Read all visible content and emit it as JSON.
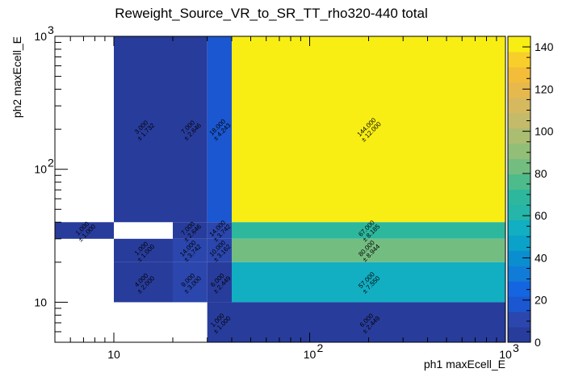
{
  "chart_data": {
    "type": "heatmap",
    "title": "Reweight_Source_VR_to_SR_TT_rho320-440 total",
    "xlabel": "ph1 maxEcell_E",
    "ylabel": "ph2 maxEcell_E",
    "x_scale": "log",
    "y_scale": "log",
    "xlim": [
      5,
      1000
    ],
    "ylim": [
      5,
      1000
    ],
    "x_tick_labels": [
      "10",
      "10",
      "10"
    ],
    "x_tick_exponents": [
      "",
      "2",
      "3"
    ],
    "y_tick_labels": [
      "10",
      "10",
      "10"
    ],
    "y_tick_exponents": [
      "",
      "2",
      "3"
    ],
    "z_range": [
      0,
      145
    ],
    "colorbar_ticks": [
      "0",
      "20",
      "40",
      "60",
      "80",
      "100",
      "120",
      "140"
    ],
    "cells": [
      {
        "x0": 5,
        "x1": 10,
        "y0": 30,
        "y1": 40,
        "value": 1,
        "label": "1.000",
        "error": "± 1.000"
      },
      {
        "x0": 10,
        "x1": 20,
        "y0": 40,
        "y1": 1000,
        "value": 3,
        "label": "3.000",
        "error": "± 1.732"
      },
      {
        "x0": 10,
        "x1": 20,
        "y0": 20,
        "y1": 30,
        "value": 1,
        "label": "1.000",
        "error": "± 1.000"
      },
      {
        "x0": 10,
        "x1": 20,
        "y0": 10,
        "y1": 20,
        "value": 4,
        "label": "4.000",
        "error": "± 2.000"
      },
      {
        "x0": 20,
        "x1": 30,
        "y0": 40,
        "y1": 1000,
        "value": 7,
        "label": "7.000",
        "error": "± 2.646"
      },
      {
        "x0": 20,
        "x1": 30,
        "y0": 30,
        "y1": 40,
        "value": 7,
        "label": "7.000",
        "error": "± 2.646"
      },
      {
        "x0": 20,
        "x1": 30,
        "y0": 20,
        "y1": 30,
        "value": 14,
        "label": "14.000",
        "error": "± 3.742"
      },
      {
        "x0": 20,
        "x1": 30,
        "y0": 10,
        "y1": 20,
        "value": 9,
        "label": "9.000",
        "error": "± 3.000"
      },
      {
        "x0": 30,
        "x1": 40,
        "y0": 40,
        "y1": 1000,
        "value": 18,
        "label": "18.000",
        "error": "± 4.243"
      },
      {
        "x0": 30,
        "x1": 40,
        "y0": 30,
        "y1": 40,
        "value": 14,
        "label": "14.000",
        "error": "± 3.742"
      },
      {
        "x0": 30,
        "x1": 40,
        "y0": 20,
        "y1": 30,
        "value": 10,
        "label": "10.000",
        "error": "± 3.162"
      },
      {
        "x0": 30,
        "x1": 40,
        "y0": 10,
        "y1": 20,
        "value": 6,
        "label": "6.000",
        "error": "± 2.449"
      },
      {
        "x0": 30,
        "x1": 40,
        "y0": 5,
        "y1": 10,
        "value": 1,
        "label": "1.000",
        "error": "± 1.000"
      },
      {
        "x0": 40,
        "x1": 1000,
        "y0": 40,
        "y1": 1000,
        "value": 144,
        "label": "144.000",
        "error": "± 12.000"
      },
      {
        "x0": 40,
        "x1": 1000,
        "y0": 30,
        "y1": 40,
        "value": 67,
        "label": "67.000",
        "error": "± 8.185"
      },
      {
        "x0": 40,
        "x1": 1000,
        "y0": 20,
        "y1": 30,
        "value": 80,
        "label": "80.000",
        "error": "± 8.944"
      },
      {
        "x0": 40,
        "x1": 1000,
        "y0": 10,
        "y1": 20,
        "value": 57,
        "label": "57.000",
        "error": "± 7.550"
      },
      {
        "x0": 40,
        "x1": 1000,
        "y0": 5,
        "y1": 10,
        "value": 6,
        "label": "6.000",
        "error": "± 2.449"
      }
    ]
  }
}
